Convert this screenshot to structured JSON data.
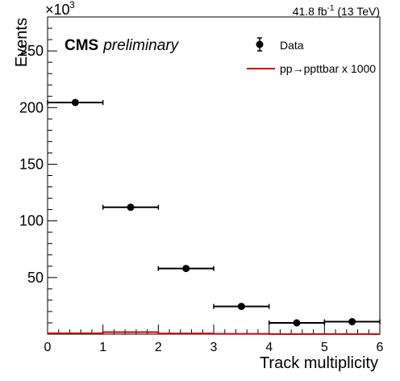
{
  "chart_data": {
    "type": "scatter",
    "title": "",
    "xlabel": "Track multiplicity",
    "ylabel": "Events",
    "xlim": [
      0,
      6
    ],
    "ylim": [
      0,
      280
    ],
    "y_multiplier": "×10",
    "y_multiplier_exp": "3",
    "x_ticks": [
      "0",
      "1",
      "2",
      "3",
      "4",
      "5",
      "6"
    ],
    "y_ticks": [
      "50",
      "100",
      "150",
      "200",
      "250"
    ],
    "lumi_label": "41.8 fb",
    "lumi_exp": "-1",
    "lumi_energy": " (13 TeV)",
    "experiment": "CMS",
    "experiment_sub": "preliminary",
    "legend_position": "top-right",
    "series": [
      {
        "name": "Data",
        "style": "points-with-xerr",
        "color": "#000000",
        "points": [
          {
            "x": 0.5,
            "y": 204.5,
            "xerr": 0.5
          },
          {
            "x": 1.5,
            "y": 112.0,
            "xerr": 0.5
          },
          {
            "x": 2.5,
            "y": 58.0,
            "xerr": 0.5
          },
          {
            "x": 3.5,
            "y": 24.5,
            "xerr": 0.5
          },
          {
            "x": 4.5,
            "y": 10.0,
            "xerr": 0.5
          },
          {
            "x": 5.5,
            "y": 11.0,
            "xerr": 0.5
          }
        ]
      },
      {
        "name": "pp→ppttbar x 1000",
        "style": "histogram-line",
        "color": "#cc0000",
        "bins": [
          {
            "x0": 0,
            "x1": 1,
            "y": 0.8
          },
          {
            "x0": 1,
            "x1": 2,
            "y": 1.8
          },
          {
            "x0": 2,
            "x1": 3,
            "y": 0.6
          },
          {
            "x0": 3,
            "x1": 4,
            "y": 0.3
          },
          {
            "x0": 4,
            "x1": 5,
            "y": 0.1
          },
          {
            "x0": 5,
            "x1": 6,
            "y": 0.05
          }
        ]
      }
    ]
  }
}
